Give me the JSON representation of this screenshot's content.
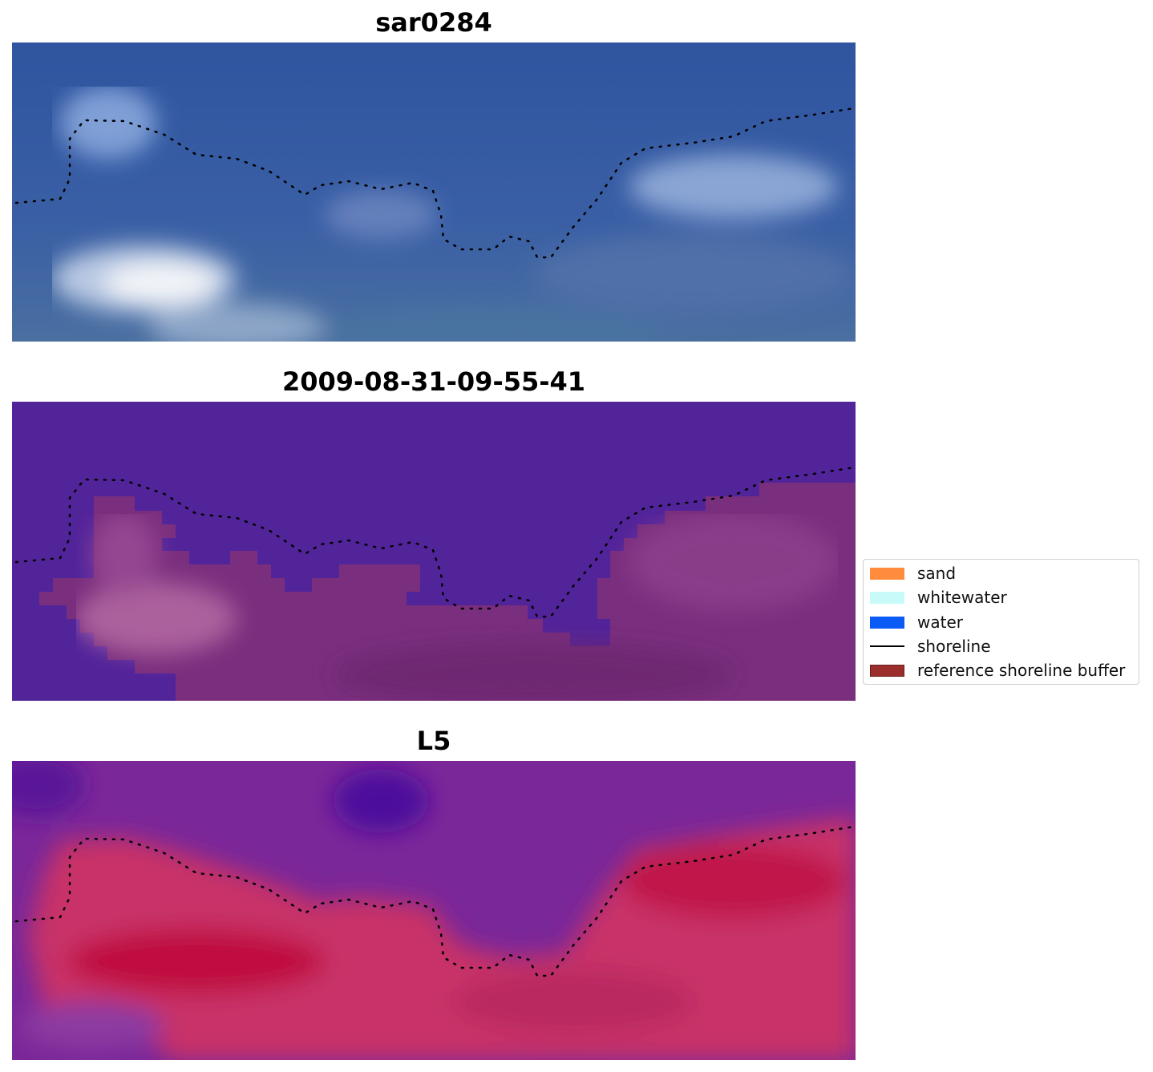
{
  "panels": [
    {
      "title": "sar0284"
    },
    {
      "title": "2009-08-31-09-55-41"
    },
    {
      "title": "L5"
    }
  ],
  "legend": {
    "items": [
      {
        "label": "sand",
        "color": "#ff8c3c",
        "kind": "patch"
      },
      {
        "label": "whitewater",
        "color": "#c8fafa",
        "kind": "patch"
      },
      {
        "label": "water",
        "color": "#0a5af5",
        "kind": "patch"
      },
      {
        "label": "shoreline",
        "color": "#000000",
        "kind": "line"
      },
      {
        "label": "reference shoreline buffer",
        "color": "#9b2d2d",
        "kind": "patch"
      }
    ]
  }
}
